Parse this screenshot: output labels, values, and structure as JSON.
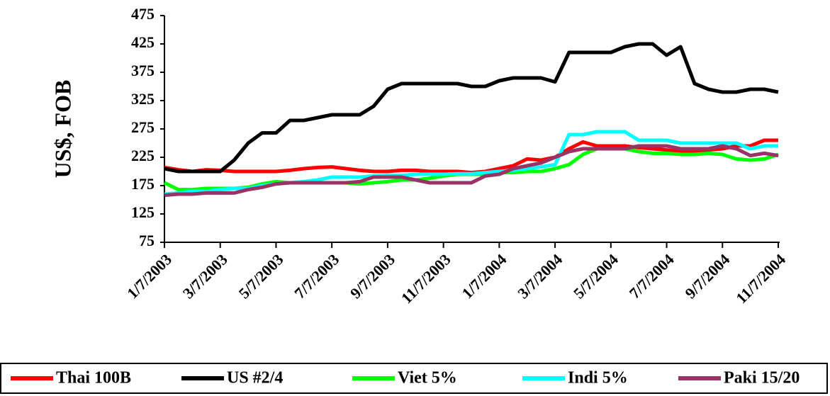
{
  "chart_data": {
    "type": "line",
    "y_label": "US$, FOB",
    "categories": [
      "1/7/2003",
      null,
      null,
      null,
      "3/7/2003",
      null,
      null,
      null,
      "5/7/2003",
      null,
      null,
      null,
      "7/7/2003",
      null,
      null,
      null,
      "9/7/2003",
      null,
      null,
      null,
      "11/7/2003",
      null,
      null,
      null,
      "1/7/2004",
      null,
      null,
      null,
      "3/7/2004",
      null,
      null,
      null,
      "5/7/2004",
      null,
      null,
      null,
      "7/7/2004",
      null,
      null,
      null,
      "9/7/2004",
      null,
      null,
      null,
      "11/7/2004"
    ],
    "series": [
      {
        "name": "Thai 100B",
        "color": "#ff0000",
        "values": [
          207,
          203,
          200,
          203,
          202,
          200,
          200,
          200,
          200,
          202,
          205,
          207,
          208,
          205,
          202,
          200,
          200,
          202,
          202,
          200,
          200,
          200,
          198,
          200,
          205,
          210,
          222,
          220,
          225,
          240,
          252,
          245,
          245,
          245,
          242,
          240,
          238,
          235,
          235,
          238,
          240,
          245,
          245,
          255,
          255
        ]
      },
      {
        "name": "US #2/4",
        "color": "#000000",
        "values": [
          205,
          200,
          200,
          200,
          200,
          220,
          250,
          268,
          268,
          290,
          290,
          295,
          300,
          300,
          300,
          315,
          345,
          355,
          355,
          355,
          355,
          355,
          350,
          350,
          360,
          365,
          365,
          365,
          358,
          410,
          410,
          410,
          410,
          420,
          425,
          425,
          405,
          420,
          355,
          345,
          340,
          340,
          345,
          345,
          340
        ]
      },
      {
        "name": "Viet 5%",
        "color": "#00ff00",
        "values": [
          180,
          168,
          168,
          170,
          170,
          170,
          172,
          178,
          182,
          180,
          180,
          180,
          180,
          180,
          178,
          180,
          182,
          185,
          185,
          188,
          192,
          195,
          195,
          195,
          198,
          198,
          200,
          200,
          205,
          212,
          230,
          240,
          240,
          240,
          235,
          232,
          232,
          230,
          230,
          232,
          230,
          222,
          220,
          222,
          230
        ]
      },
      {
        "name": "Indi 5%",
        "color": "#00ffff",
        "values": [
          160,
          162,
          165,
          165,
          168,
          170,
          170,
          175,
          178,
          180,
          182,
          185,
          190,
          190,
          190,
          192,
          193,
          193,
          195,
          195,
          195,
          196,
          196,
          198,
          200,
          202,
          205,
          208,
          212,
          265,
          265,
          270,
          270,
          270,
          255,
          255,
          255,
          250,
          250,
          250,
          250,
          250,
          240,
          245,
          245
        ]
      },
      {
        "name": "Paki 15/20",
        "color": "#993366",
        "values": [
          158,
          160,
          160,
          162,
          162,
          162,
          168,
          172,
          178,
          180,
          180,
          180,
          180,
          180,
          182,
          190,
          190,
          190,
          185,
          180,
          180,
          180,
          180,
          192,
          195,
          205,
          210,
          215,
          225,
          235,
          240,
          240,
          240,
          240,
          245,
          245,
          245,
          240,
          240,
          240,
          245,
          240,
          228,
          232,
          228
        ]
      }
    ],
    "ylim": [
      75,
      475
    ],
    "yticks": [
      75,
      125,
      175,
      225,
      275,
      325,
      375,
      425,
      475
    ]
  }
}
